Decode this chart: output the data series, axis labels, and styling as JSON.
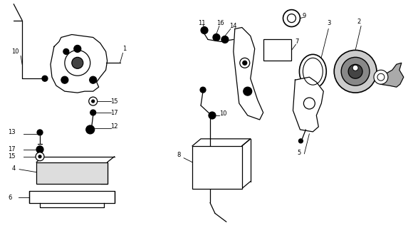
{
  "bg_color": "#ffffff",
  "line_color": "#000000",
  "figsize": [
    5.8,
    3.2
  ],
  "dpi": 100
}
